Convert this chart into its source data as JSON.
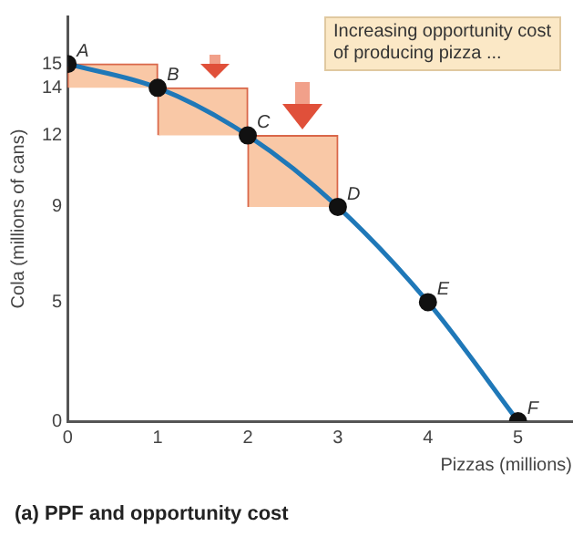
{
  "chart_data": {
    "type": "line",
    "title": "(a) PPF and opportunity cost",
    "xlabel": "Pizzas (millions)",
    "ylabel": "Cola (millions of cans)",
    "xlim": [
      0,
      5.6
    ],
    "ylim": [
      0,
      17
    ],
    "xticks": [
      0,
      1,
      2,
      3,
      4,
      5
    ],
    "yticks": [
      0,
      5,
      9,
      12,
      14,
      15
    ],
    "grid": false,
    "legend": false,
    "series": [
      {
        "type": "bar",
        "x": [
          0.5,
          1.5,
          2.5
        ],
        "base": [
          14,
          12,
          9
        ],
        "values": [
          1,
          2,
          3
        ],
        "color": "#f9c8a6"
      },
      {
        "x": [
          0,
          1,
          2,
          3,
          4,
          5
        ],
        "values": [
          15,
          14,
          12,
          9,
          5,
          0
        ],
        "color": "#1f78b8",
        "marker": "none"
      },
      {
        "type": "scatter",
        "x": [
          0,
          1,
          2,
          3,
          4,
          5
        ],
        "values": [
          15,
          14,
          12,
          9,
          5,
          0
        ],
        "color": "#111111",
        "marker": "circle"
      }
    ],
    "annotations": [
      {
        "text": "A",
        "x": 0,
        "y": 15
      },
      {
        "text": "B",
        "x": 1,
        "y": 14
      },
      {
        "text": "C",
        "x": 2,
        "y": 12
      },
      {
        "text": "D",
        "x": 3,
        "y": 9
      },
      {
        "text": "E",
        "x": 4,
        "y": 5
      },
      {
        "text": "F",
        "x": 5,
        "y": 0
      },
      "Increasing opportunity cost of producing pizza ..."
    ]
  }
}
